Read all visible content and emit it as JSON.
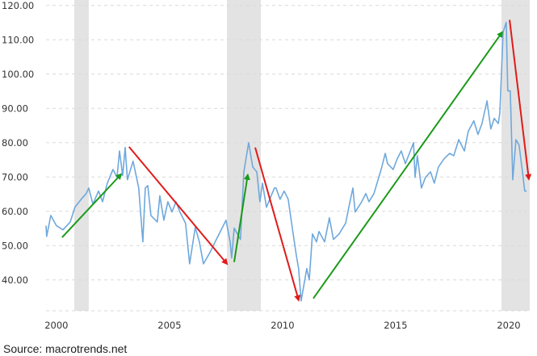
{
  "chart_data": {
    "type": "line",
    "title": "",
    "xlabel": "",
    "ylabel": "",
    "xlim": [
      1999.54,
      2020.93
    ],
    "ylim": [
      31,
      121.6
    ],
    "grid": true,
    "y_ticks": [
      40,
      50,
      60,
      70,
      80,
      90,
      100,
      110,
      120
    ],
    "y_tick_labels": [
      "40.00",
      "50.00",
      "60.00",
      "70.00",
      "80.00",
      "90.00",
      "100.00",
      "110.00",
      "120.00"
    ],
    "x_ticks": [
      2000,
      2005,
      2010,
      2015,
      2020
    ],
    "x_tick_labels": [
      "2000",
      "2005",
      "2010",
      "2015",
      "2020"
    ],
    "colors": {
      "line": "#6fa8dc",
      "recession": "#e3e3e3",
      "grid": "#d9d9d9",
      "up_arrow": "#1a9a1a",
      "down_arrow": "#e01b1b"
    },
    "recessions": [
      [
        2000.79,
        2001.43
      ],
      [
        2007.54,
        2009.04
      ],
      [
        2019.68,
        2020.93
      ]
    ],
    "series": [
      {
        "x": [
          1999.54,
          1999.57,
          1999.75,
          2000,
          2000.29,
          2000.61,
          2000.82,
          2001.07,
          2001.32,
          2001.43,
          2001.61,
          2001.86,
          2002.04,
          2002.25,
          2002.5,
          2002.68,
          2002.79,
          2002.93,
          2003.04,
          2003.14,
          2003.39,
          2003.64,
          2003.82,
          2003.93,
          2004.04,
          2004.18,
          2004.46,
          2004.57,
          2004.75,
          2004.93,
          2005.11,
          2005.29,
          2005.46,
          2005.71,
          2005.89,
          2006.14,
          2006.32,
          2006.5,
          2006.79,
          2007.07,
          2007.25,
          2007.5,
          2007.68,
          2007.75,
          2007.86,
          2008.14,
          2008.29,
          2008.5,
          2008.68,
          2008.86,
          2009,
          2009.11,
          2009.29,
          2009.64,
          2009.71,
          2009.89,
          2010.07,
          2010.25,
          2010.43,
          2010.61,
          2010.71,
          2010.82,
          2011.07,
          2011.18,
          2011.32,
          2011.5,
          2011.61,
          2011.86,
          2012.07,
          2012.25,
          2012.5,
          2012.79,
          2012.96,
          2013.11,
          2013.21,
          2013.5,
          2013.68,
          2013.82,
          2014.04,
          2014.36,
          2014.54,
          2014.64,
          2014.89,
          2015.07,
          2015.25,
          2015.43,
          2015.61,
          2015.79,
          2015.86,
          2015.96,
          2016.14,
          2016.32,
          2016.54,
          2016.71,
          2016.89,
          2017.14,
          2017.39,
          2017.57,
          2017.79,
          2018.04,
          2018.21,
          2018.46,
          2018.64,
          2018.82,
          2019.04,
          2019.21,
          2019.36,
          2019.54,
          2019.61,
          2019.75,
          2019.89,
          2019.96,
          2020.07,
          2020.18,
          2020.32,
          2020.46,
          2020.61,
          2020.71,
          2020.79
        ],
        "y": [
          55.8,
          52.7,
          58.8,
          55.8,
          54.6,
          56.9,
          61.2,
          63.3,
          65.2,
          66.8,
          62.1,
          65.9,
          62.8,
          68.2,
          72.2,
          69.9,
          77.6,
          70.4,
          78.6,
          69.2,
          74.6,
          66.8,
          51.1,
          66.8,
          67.5,
          58.8,
          56.9,
          64.5,
          57.4,
          62.8,
          59.8,
          62.8,
          59.8,
          56.5,
          44.7,
          55.3,
          51.1,
          44.7,
          48.0,
          51.8,
          54.1,
          57.4,
          51.1,
          46.4,
          55.1,
          51.8,
          71.5,
          80.0,
          72.9,
          71.5,
          62.8,
          68.2,
          61.2,
          66.8,
          66.8,
          63.5,
          65.9,
          63.5,
          55.1,
          47.1,
          43.3,
          33.9,
          43.3,
          40.0,
          53.4,
          51.1,
          54.1,
          51.1,
          58.1,
          51.8,
          53.4,
          56.5,
          62.1,
          66.8,
          59.8,
          62.8,
          65.2,
          62.8,
          65.2,
          72.2,
          76.9,
          73.9,
          72.2,
          75.3,
          77.6,
          73.9,
          76.9,
          80.0,
          69.9,
          76.2,
          66.8,
          69.9,
          71.5,
          68.2,
          72.9,
          75.3,
          76.9,
          76.2,
          80.9,
          77.6,
          83.3,
          86.4,
          82.4,
          85.6,
          92.2,
          84.0,
          87.1,
          85.6,
          88.7,
          112.2,
          115.1,
          95.1,
          95.1,
          69.2,
          80.9,
          79.3,
          71.5,
          65.9,
          65.9
        ]
      }
    ],
    "annotations": [
      {
        "type": "arrow",
        "direction": "up",
        "from": [
          2000.25,
          52.4
        ],
        "to": [
          2002.86,
          70.8
        ]
      },
      {
        "type": "arrow",
        "direction": "down",
        "from": [
          2003.21,
          78.8
        ],
        "to": [
          2007.54,
          44.7
        ]
      },
      {
        "type": "arrow",
        "direction": "up",
        "from": [
          2007.86,
          45.2
        ],
        "to": [
          2008.46,
          70.6
        ]
      },
      {
        "type": "arrow",
        "direction": "down",
        "from": [
          2008.79,
          78.6
        ],
        "to": [
          2010.71,
          34.1
        ]
      },
      {
        "type": "arrow",
        "direction": "up",
        "from": [
          2011.36,
          34.6
        ],
        "to": [
          2019.71,
          112.2
        ]
      },
      {
        "type": "arrow",
        "direction": "down",
        "from": [
          2020.04,
          115.8
        ],
        "to": [
          2020.89,
          69.4
        ]
      }
    ]
  },
  "source": "Source:  macrotrends.net"
}
